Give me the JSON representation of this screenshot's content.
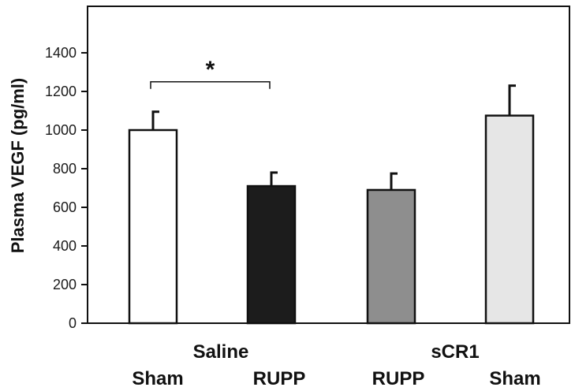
{
  "chart_data": {
    "type": "bar",
    "ylabel": "Plasma VEGF (pg/ml)",
    "ylim": [
      0,
      1600
    ],
    "yticks": [
      "0",
      "200",
      "400",
      "600",
      "800",
      "1000",
      "1200",
      "1400"
    ],
    "categories": [
      "Sham",
      "RUPP",
      "RUPP",
      "Sham"
    ],
    "groups": [
      {
        "label": "Saline",
        "categories": [
          "Sham",
          "RUPP"
        ]
      },
      {
        "label": "sCR1",
        "categories": [
          "RUPP",
          "Sham"
        ]
      }
    ],
    "values": [
      1000,
      710,
      690,
      1075
    ],
    "errors": [
      95,
      70,
      85,
      155
    ],
    "colors": [
      "#ffffff",
      "#1c1c1c",
      "#8e8e8e",
      "#e6e6e6"
    ],
    "significance": {
      "label": "*",
      "between": [
        0,
        1
      ],
      "y": 1250
    },
    "grid": false,
    "legend": "none"
  }
}
